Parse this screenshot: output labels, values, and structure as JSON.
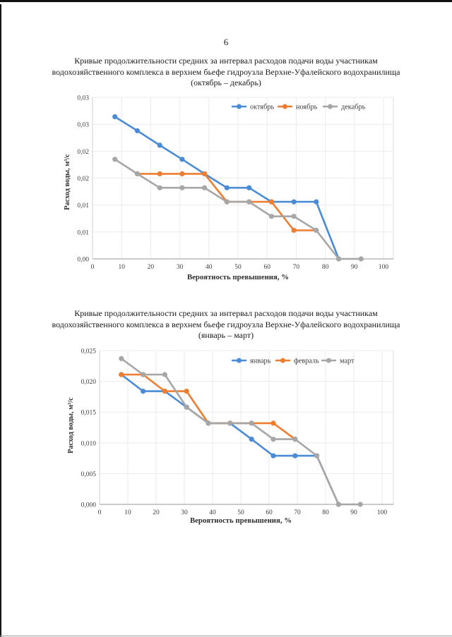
{
  "page": {
    "number": "6"
  },
  "charts": [
    {
      "title_lines": [
        "Кривые продолжительности средних за интервал расходов подачи воды участникам",
        "водохозяйственного комплекса в верхнем бьефе гидроузла Верхне-Уфалейского водохранилища",
        "(октябрь – декабрь)"
      ],
      "x_label": "Вероятность превышения, %",
      "y_label": "Расход воды, м³/с",
      "chart_data": {
        "type": "line",
        "xlim": [
          0,
          100
        ],
        "ylim": [
          0,
          0.03
        ],
        "grid": true,
        "legend_position": "top-inside",
        "x_tick_values": [
          0,
          10,
          20,
          30,
          40,
          50,
          60,
          70,
          80,
          90,
          100
        ],
        "x_tick_labels": [
          "0",
          "10",
          "20",
          "30",
          "40",
          "50",
          "60",
          "70",
          "80",
          "90",
          "100"
        ],
        "y_tick_values": [
          0.03,
          0.025,
          0.02,
          0.015,
          0.01,
          0.005,
          0.0
        ],
        "y_tick_labels": [
          "0,03",
          "0,03",
          "0,02",
          "0,02",
          "0,01",
          "0,01",
          "0,00"
        ],
        "series": [
          {
            "name": "октябрь",
            "color": "#4a8bd5",
            "points": [
              [
                7.7,
                0.0264
              ],
              [
                15.4,
                0.0238
              ],
              [
                23.1,
                0.0211
              ],
              [
                30.8,
                0.0185
              ],
              [
                38.5,
                0.0158
              ],
              [
                46.2,
                0.0132
              ],
              [
                53.8,
                0.0132
              ],
              [
                61.5,
                0.0106
              ],
              [
                69.2,
                0.0106
              ],
              [
                76.9,
                0.0106
              ],
              [
                84.6,
                0
              ]
            ]
          },
          {
            "name": "ноябрь",
            "color": "#ed7d31",
            "points": [
              [
                15.4,
                0.0158
              ],
              [
                23.1,
                0.0158
              ],
              [
                30.8,
                0.0158
              ],
              [
                38.5,
                0.0158
              ],
              [
                46.2,
                0.0106
              ],
              [
                53.8,
                0.0106
              ],
              [
                61.5,
                0.0106
              ],
              [
                69.2,
                0.0053
              ],
              [
                76.9,
                0.0053
              ]
            ]
          },
          {
            "name": "декабрь",
            "color": "#a6a6a6",
            "points": [
              [
                7.7,
                0.0185
              ],
              [
                15.4,
                0.0158
              ],
              [
                23.1,
                0.0132
              ],
              [
                30.8,
                0.0132
              ],
              [
                38.5,
                0.0132
              ],
              [
                46.2,
                0.0106
              ],
              [
                53.8,
                0.0106
              ],
              [
                61.5,
                0.0079
              ],
              [
                69.2,
                0.0079
              ],
              [
                76.9,
                0.0053
              ],
              [
                84.6,
                0
              ],
              [
                92.3,
                0
              ]
            ]
          }
        ]
      }
    },
    {
      "title_lines": [
        "Кривые продолжительности средних за интервал расходов подачи воды участникам",
        "водохозяйственного комплекса в верхнем бьефе гидроузла Верхне-Уфалейского водохранилища",
        "(январь – март)"
      ],
      "x_label": "Вероятность превышения, %",
      "y_label": "Расход воды, м³/с",
      "chart_data": {
        "type": "line",
        "xlim": [
          0,
          100
        ],
        "ylim": [
          0,
          0.025
        ],
        "grid": true,
        "legend_position": "top-inside",
        "x_tick_values": [
          0,
          10,
          20,
          30,
          40,
          50,
          60,
          70,
          80,
          90,
          100
        ],
        "x_tick_labels": [
          "0",
          "10",
          "20",
          "30",
          "40",
          "50",
          "60",
          "70",
          "80",
          "90",
          "100"
        ],
        "y_tick_values": [
          0.025,
          0.02,
          0.015,
          0.01,
          0.005,
          0.0
        ],
        "y_tick_labels": [
          "0,025",
          "0,020",
          "0,015",
          "0,010",
          "0,005",
          "0,000"
        ],
        "series": [
          {
            "name": "январь",
            "color": "#4a8bd5",
            "points": [
              [
                7.7,
                0.0211
              ],
              [
                15.4,
                0.0184
              ],
              [
                23.1,
                0.0184
              ],
              [
                30.8,
                0.0158
              ],
              [
                38.5,
                0.0132
              ],
              [
                46.2,
                0.0132
              ],
              [
                53.8,
                0.0106
              ],
              [
                61.5,
                0.0079
              ],
              [
                69.2,
                0.0079
              ],
              [
                76.9,
                0.0079
              ],
              [
                84.6,
                0
              ]
            ]
          },
          {
            "name": "февраль",
            "color": "#ed7d31",
            "points": [
              [
                7.7,
                0.0211
              ],
              [
                15.4,
                0.0211
              ],
              [
                23.1,
                0.0184
              ],
              [
                30.8,
                0.0184
              ],
              [
                38.5,
                0.0132
              ],
              [
                46.2,
                0.0132
              ],
              [
                53.8,
                0.0132
              ],
              [
                61.5,
                0.0132
              ],
              [
                69.2,
                0.0106
              ]
            ]
          },
          {
            "name": "март",
            "color": "#a6a6a6",
            "points": [
              [
                7.7,
                0.0237
              ],
              [
                15.4,
                0.0211
              ],
              [
                23.1,
                0.0211
              ],
              [
                30.8,
                0.0158
              ],
              [
                38.5,
                0.0132
              ],
              [
                46.2,
                0.0132
              ],
              [
                53.8,
                0.0132
              ],
              [
                61.5,
                0.0106
              ],
              [
                69.2,
                0.0106
              ],
              [
                76.9,
                0.0079
              ],
              [
                84.6,
                0
              ],
              [
                92.3,
                0
              ]
            ]
          }
        ]
      }
    }
  ]
}
